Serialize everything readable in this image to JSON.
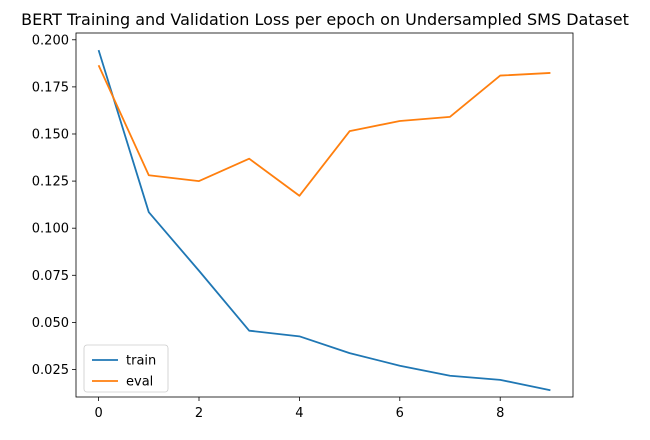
{
  "chart_data": {
    "type": "line",
    "title": "BERT Training and Validation Loss per epoch on Undersampled SMS Dataset",
    "xlabel": "",
    "ylabel": "",
    "x": [
      0,
      1,
      2,
      3,
      4,
      5,
      6,
      7,
      8,
      9
    ],
    "xlim": [
      -0.45,
      9.45
    ],
    "ylim": [
      0.0104,
      0.2036
    ],
    "xticks": [
      0,
      2,
      4,
      6,
      8
    ],
    "yticks": [
      0.025,
      0.05,
      0.075,
      0.1,
      0.125,
      0.15,
      0.175,
      0.2
    ],
    "ytick_labels": [
      "0.025",
      "0.050",
      "0.075",
      "0.100",
      "0.125",
      "0.150",
      "0.175",
      "0.200"
    ],
    "grid": false,
    "legend_position": "lower-left",
    "series": [
      {
        "name": "train",
        "color": "#1f77b4",
        "values": [
          0.1945,
          0.1085,
          0.0774,
          0.0456,
          0.0426,
          0.0337,
          0.027,
          0.0217,
          0.0195,
          0.014
        ]
      },
      {
        "name": "eval",
        "color": "#ff7f0e",
        "values": [
          0.1865,
          0.1281,
          0.125,
          0.1369,
          0.1172,
          0.1515,
          0.1569,
          0.1591,
          0.181,
          0.1824
        ]
      }
    ]
  }
}
